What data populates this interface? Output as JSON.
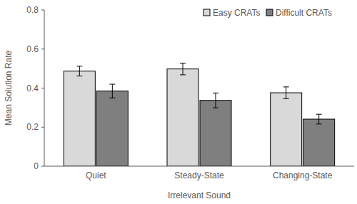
{
  "chart_data": {
    "type": "bar",
    "x_label": "Irrelevant Sound",
    "y_label": "Mean Solution Rate",
    "categories": [
      "Quiet",
      "Steady-State",
      "Changing-State"
    ],
    "series": [
      {
        "name": "Easy CRATs",
        "color": "#d9d9d9",
        "values": [
          0.487,
          0.498,
          0.376
        ],
        "errors": [
          0.025,
          0.03,
          0.03
        ]
      },
      {
        "name": "Difficult CRATs",
        "color": "#7f7f7f",
        "values": [
          0.385,
          0.337,
          0.241
        ],
        "errors": [
          0.035,
          0.038,
          0.025
        ]
      }
    ],
    "ylim": [
      0,
      0.8
    ],
    "yticks": [
      0,
      0.2,
      0.4,
      0.6,
      0.8
    ],
    "grid": false,
    "legend": "top-right"
  }
}
